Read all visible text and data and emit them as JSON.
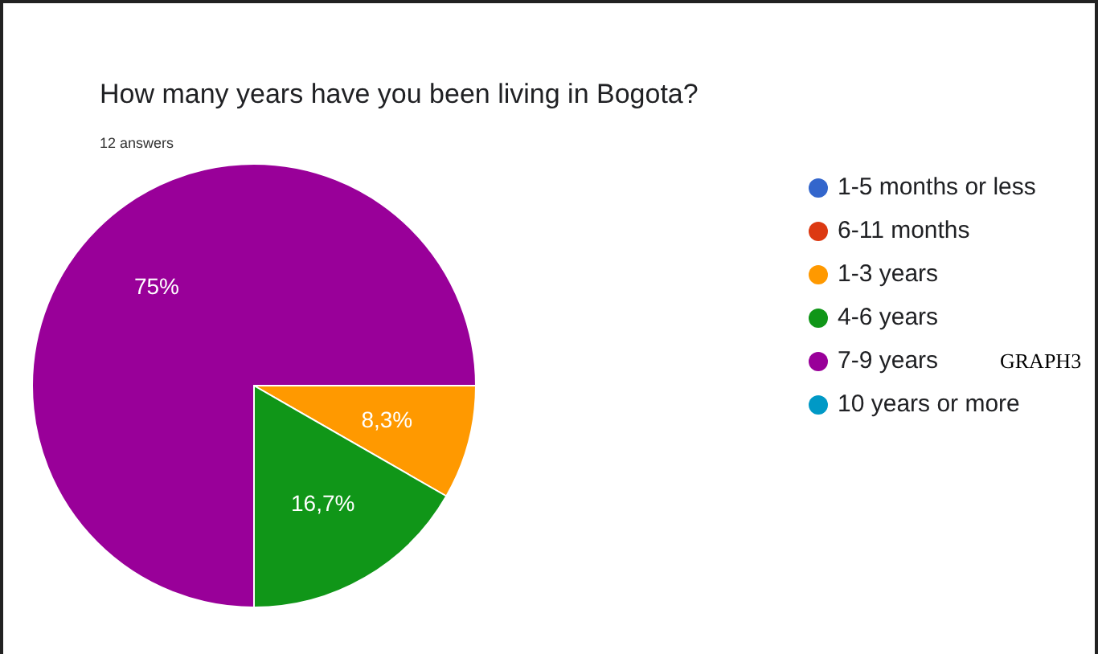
{
  "chart_data": {
    "type": "pie",
    "title": "How many years have you been living in Bogota?",
    "subtitle": "12 answers",
    "categories": [
      "1-5 months or less",
      "6-11 months",
      "1-3 years",
      "4-6 years",
      "7-9 years",
      "10 years or more"
    ],
    "values": [
      0,
      0,
      8.3,
      16.7,
      75,
      0
    ],
    "colors": [
      "#3366cc",
      "#dc3912",
      "#ff9900",
      "#109618",
      "#990099",
      "#0099c6"
    ],
    "value_labels": [
      null,
      null,
      "8,3%",
      "16,7%",
      "75%",
      null
    ],
    "legend": "right",
    "annotations": [
      "GRAPH3"
    ]
  }
}
